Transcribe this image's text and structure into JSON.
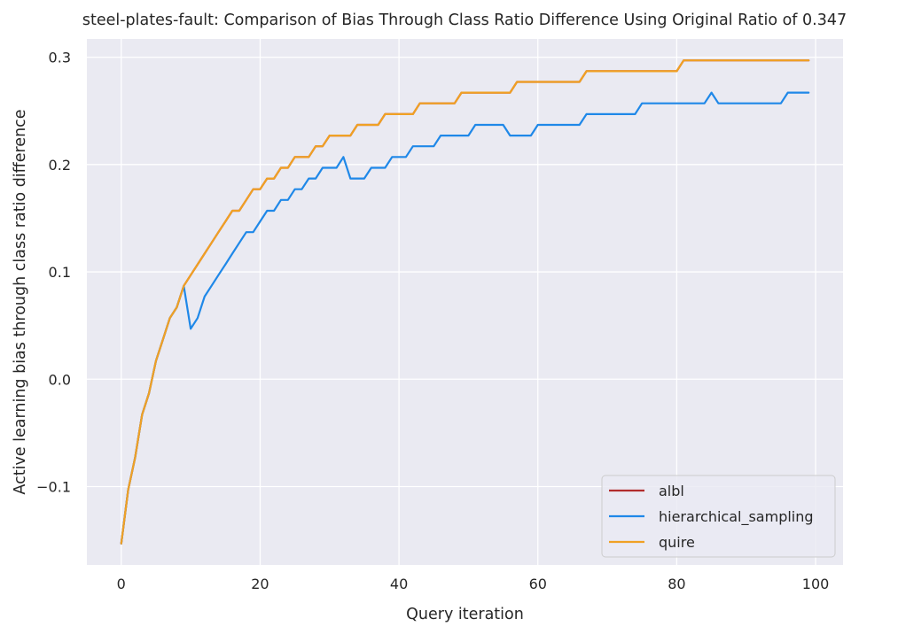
{
  "chart_data": {
    "type": "line",
    "title": "steel-plates-fault: Comparison of Bias Through Class Ratio Difference Using Original Ratio of 0.347",
    "xlabel": "Query iteration",
    "ylabel": "Active learning bias through class ratio difference",
    "xlim": [
      -4.95,
      103.95
    ],
    "ylim": [
      -0.173,
      0.317
    ],
    "xticks": [
      0,
      20,
      40,
      60,
      80,
      100
    ],
    "yticks": [
      -0.1,
      0.0,
      0.1,
      0.2,
      0.3
    ],
    "xtick_labels": [
      "0",
      "20",
      "40",
      "60",
      "80",
      "100"
    ],
    "ytick_labels": [
      "−0.1",
      "0.0",
      "0.1",
      "0.2",
      "0.3"
    ],
    "grid": true,
    "background": "#eaeaf2",
    "legend_position": "lower-right",
    "series": [
      {
        "name": "albl",
        "color": "#b22c2c",
        "x": [
          0,
          1,
          2,
          3,
          4,
          5,
          6,
          7,
          8,
          9,
          10,
          11,
          12,
          13,
          14,
          15,
          16,
          17,
          18,
          19,
          20,
          21,
          22,
          23,
          24,
          25,
          26,
          27,
          28,
          29,
          30,
          31,
          32,
          33,
          34,
          35,
          36,
          37,
          38,
          39,
          40,
          41,
          42,
          43,
          44,
          45,
          46,
          47,
          48,
          49,
          50,
          51,
          52,
          53,
          54,
          55,
          56,
          57,
          58,
          59,
          60,
          61,
          62,
          63,
          64,
          65,
          66,
          67,
          68,
          69,
          70,
          71,
          72,
          73,
          74,
          75,
          76,
          77,
          78,
          79,
          80,
          81,
          82,
          83,
          84,
          85,
          86,
          87,
          88,
          89,
          90,
          91,
          92,
          93,
          94,
          95,
          96,
          97,
          98,
          99
        ],
        "y": [
          -0.153,
          -0.103,
          -0.073,
          -0.033,
          -0.013,
          0.017,
          0.037,
          0.057,
          0.067,
          0.087,
          0.097,
          0.107,
          0.117,
          0.127,
          0.137,
          0.147,
          0.157,
          0.157,
          0.167,
          0.177,
          0.177,
          0.187,
          0.187,
          0.197,
          0.197,
          0.207,
          0.207,
          0.207,
          0.217,
          0.217,
          0.227,
          0.227,
          0.227,
          0.227,
          0.237,
          0.237,
          0.237,
          0.237,
          0.247,
          0.247,
          0.247,
          0.247,
          0.247,
          0.257,
          0.257,
          0.257,
          0.257,
          0.257,
          0.257,
          0.267,
          0.267,
          0.267,
          0.267,
          0.267,
          0.267,
          0.267,
          0.267,
          0.277,
          0.277,
          0.277,
          0.277,
          0.277,
          0.277,
          0.277,
          0.277,
          0.277,
          0.277,
          0.287,
          0.287,
          0.287,
          0.287,
          0.287,
          0.287,
          0.287,
          0.287,
          0.287,
          0.287,
          0.287,
          0.287,
          0.287,
          0.287,
          0.297,
          0.297,
          0.297,
          0.297,
          0.297,
          0.297,
          0.297,
          0.297,
          0.297,
          0.297,
          0.297,
          0.297,
          0.297,
          0.297,
          0.297,
          0.297,
          0.297,
          0.297,
          0.297
        ]
      },
      {
        "name": "hierarchical_sampling",
        "color": "#1f88e8",
        "x": [
          0,
          1,
          2,
          3,
          4,
          5,
          6,
          7,
          8,
          9,
          10,
          11,
          12,
          13,
          14,
          15,
          16,
          17,
          18,
          19,
          20,
          21,
          22,
          23,
          24,
          25,
          26,
          27,
          28,
          29,
          30,
          31,
          32,
          33,
          34,
          35,
          36,
          37,
          38,
          39,
          40,
          41,
          42,
          43,
          44,
          45,
          46,
          47,
          48,
          49,
          50,
          51,
          52,
          53,
          54,
          55,
          56,
          57,
          58,
          59,
          60,
          61,
          62,
          63,
          64,
          65,
          66,
          67,
          68,
          69,
          70,
          71,
          72,
          73,
          74,
          75,
          76,
          77,
          78,
          79,
          80,
          81,
          82,
          83,
          84,
          85,
          86,
          87,
          88,
          89,
          90,
          91,
          92,
          93,
          94,
          95,
          96,
          97,
          98,
          99
        ],
        "y": [
          -0.153,
          -0.103,
          -0.073,
          -0.033,
          -0.013,
          0.017,
          0.037,
          0.057,
          0.067,
          0.087,
          0.047,
          0.057,
          0.077,
          0.087,
          0.097,
          0.107,
          0.117,
          0.127,
          0.137,
          0.137,
          0.147,
          0.157,
          0.157,
          0.167,
          0.167,
          0.177,
          0.177,
          0.187,
          0.187,
          0.197,
          0.197,
          0.197,
          0.207,
          0.187,
          0.187,
          0.187,
          0.197,
          0.197,
          0.197,
          0.207,
          0.207,
          0.207,
          0.217,
          0.217,
          0.217,
          0.217,
          0.227,
          0.227,
          0.227,
          0.227,
          0.227,
          0.237,
          0.237,
          0.237,
          0.237,
          0.237,
          0.227,
          0.227,
          0.227,
          0.227,
          0.237,
          0.237,
          0.237,
          0.237,
          0.237,
          0.237,
          0.237,
          0.247,
          0.247,
          0.247,
          0.247,
          0.247,
          0.247,
          0.247,
          0.247,
          0.257,
          0.257,
          0.257,
          0.257,
          0.257,
          0.257,
          0.257,
          0.257,
          0.257,
          0.257,
          0.267,
          0.257,
          0.257,
          0.257,
          0.257,
          0.257,
          0.257,
          0.257,
          0.257,
          0.257,
          0.257,
          0.267,
          0.267,
          0.267,
          0.267
        ]
      },
      {
        "name": "quire",
        "color": "#f0a124",
        "x": [
          0,
          1,
          2,
          3,
          4,
          5,
          6,
          7,
          8,
          9,
          10,
          11,
          12,
          13,
          14,
          15,
          16,
          17,
          18,
          19,
          20,
          21,
          22,
          23,
          24,
          25,
          26,
          27,
          28,
          29,
          30,
          31,
          32,
          33,
          34,
          35,
          36,
          37,
          38,
          39,
          40,
          41,
          42,
          43,
          44,
          45,
          46,
          47,
          48,
          49,
          50,
          51,
          52,
          53,
          54,
          55,
          56,
          57,
          58,
          59,
          60,
          61,
          62,
          63,
          64,
          65,
          66,
          67,
          68,
          69,
          70,
          71,
          72,
          73,
          74,
          75,
          76,
          77,
          78,
          79,
          80,
          81,
          82,
          83,
          84,
          85,
          86,
          87,
          88,
          89,
          90,
          91,
          92,
          93,
          94,
          95,
          96,
          97,
          98,
          99
        ],
        "y": [
          -0.153,
          -0.103,
          -0.073,
          -0.033,
          -0.013,
          0.017,
          0.037,
          0.057,
          0.067,
          0.087,
          0.097,
          0.107,
          0.117,
          0.127,
          0.137,
          0.147,
          0.157,
          0.157,
          0.167,
          0.177,
          0.177,
          0.187,
          0.187,
          0.197,
          0.197,
          0.207,
          0.207,
          0.207,
          0.217,
          0.217,
          0.227,
          0.227,
          0.227,
          0.227,
          0.237,
          0.237,
          0.237,
          0.237,
          0.247,
          0.247,
          0.247,
          0.247,
          0.247,
          0.257,
          0.257,
          0.257,
          0.257,
          0.257,
          0.257,
          0.267,
          0.267,
          0.267,
          0.267,
          0.267,
          0.267,
          0.267,
          0.267,
          0.277,
          0.277,
          0.277,
          0.277,
          0.277,
          0.277,
          0.277,
          0.277,
          0.277,
          0.277,
          0.287,
          0.287,
          0.287,
          0.287,
          0.287,
          0.287,
          0.287,
          0.287,
          0.287,
          0.287,
          0.287,
          0.287,
          0.287,
          0.287,
          0.297,
          0.297,
          0.297,
          0.297,
          0.297,
          0.297,
          0.297,
          0.297,
          0.297,
          0.297,
          0.297,
          0.297,
          0.297,
          0.297,
          0.297,
          0.297,
          0.297,
          0.297,
          0.297
        ]
      }
    ]
  }
}
